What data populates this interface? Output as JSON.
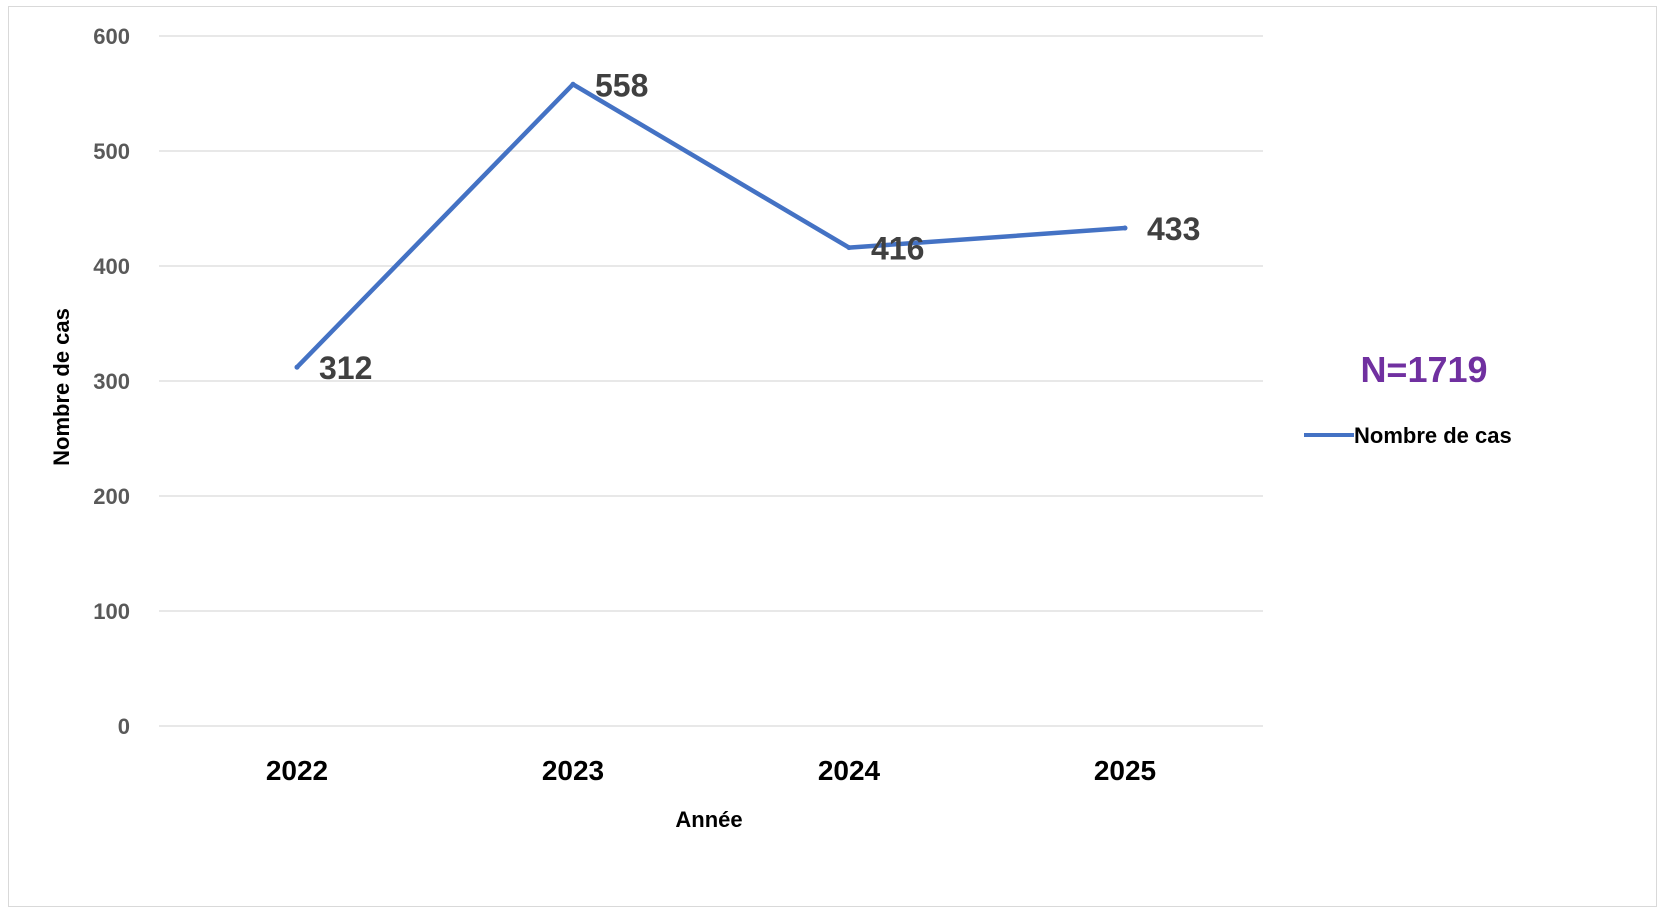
{
  "chart_data": {
    "type": "line",
    "title": "",
    "xlabel": "Année",
    "ylabel": "Nombre de cas",
    "categories": [
      "2022",
      "2023",
      "2024",
      "2025"
    ],
    "series": [
      {
        "name": "Nombre de cas",
        "values": [
          312,
          558,
          416,
          433
        ]
      }
    ],
    "ylim": [
      0,
      600
    ],
    "yticks": [
      "0",
      "100",
      "200",
      "300",
      "400",
      "500",
      "600"
    ],
    "grid": true,
    "legend_position": "right",
    "annotation": "N=1719",
    "colors": {
      "series": "#4472C4",
      "annotation": "#7030A0",
      "grid": "#d9d9d9",
      "tick_text": "#595959",
      "data_label": "#404040",
      "axis_title": "#000000"
    }
  }
}
